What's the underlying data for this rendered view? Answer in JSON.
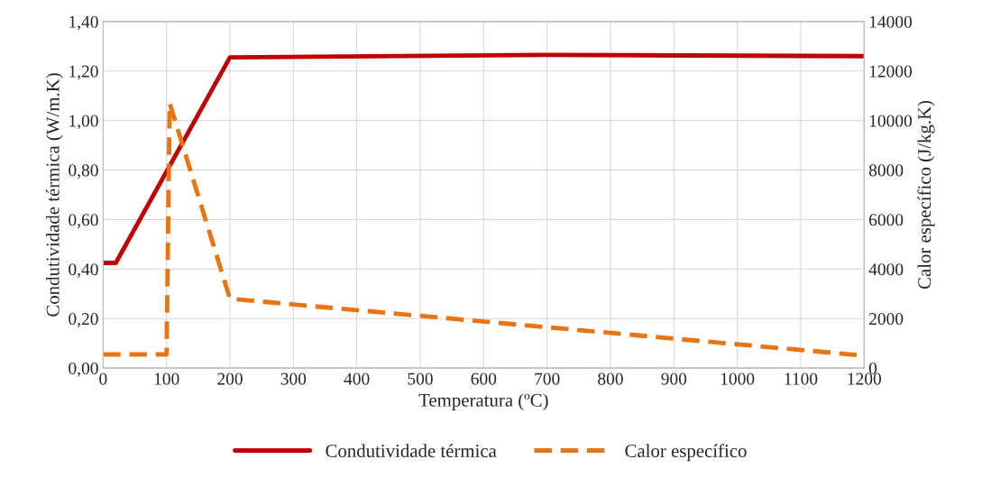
{
  "chart_data": {
    "type": "line",
    "xlabel": "Temperatura (ºC)",
    "ylabel": "Condutividade térmica (W/m.K)",
    "y2label": "Calor específico (J/kg.K)",
    "series": [
      {
        "name": "Condutividade térmica",
        "color": "#c00000",
        "x": [
          0,
          20,
          200,
          700,
          1200
        ],
        "values": [
          0.425,
          0.425,
          1.255,
          1.265,
          1.26
        ],
        "line_style": "solid"
      },
      {
        "name": "Calor específico",
        "color": "#e87511",
        "axis": "y2",
        "x": [
          0,
          100,
          105,
          200,
          1200
        ],
        "values": [
          550,
          550,
          10700,
          2800,
          500
        ],
        "line_style": "dashed"
      }
    ],
    "xlim": [
      0,
      1200
    ],
    "xticks": [
      0,
      100,
      200,
      300,
      400,
      500,
      600,
      700,
      800,
      900,
      1000,
      1100,
      1200
    ],
    "ylim": [
      0,
      1.4
    ],
    "yticks": [
      {
        "value": 0,
        "label": "0,00"
      },
      {
        "value": 0.2,
        "label": "0,20"
      },
      {
        "value": 0.4,
        "label": "0,40"
      },
      {
        "value": 0.6,
        "label": "0,60"
      },
      {
        "value": 0.8,
        "label": "0,80"
      },
      {
        "value": 1.0,
        "label": "1,00"
      },
      {
        "value": 1.2,
        "label": "1,20"
      },
      {
        "value": 1.4,
        "label": "1,40"
      }
    ],
    "y2lim": [
      0,
      14000
    ],
    "y2ticks": [
      0,
      2000,
      4000,
      6000,
      8000,
      10000,
      12000,
      14000
    ],
    "grid": true,
    "legend": "bottom"
  }
}
